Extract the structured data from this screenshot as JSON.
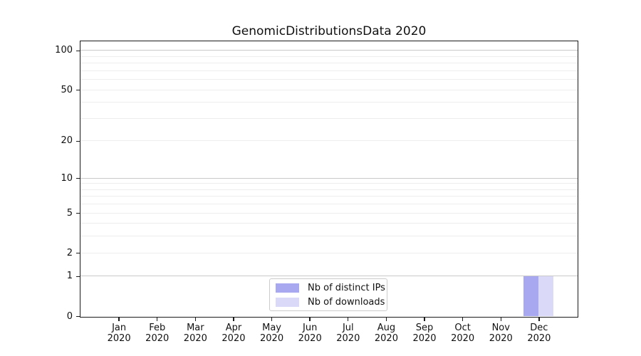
{
  "chart_data": {
    "type": "bar",
    "title": "GenomicDistributionsData 2020",
    "categories": [
      "Jan",
      "Feb",
      "Mar",
      "Apr",
      "May",
      "Jun",
      "Jul",
      "Aug",
      "Sep",
      "Oct",
      "Nov",
      "Dec"
    ],
    "category_year": "2020",
    "series": [
      {
        "name": "Nb of distinct IPs",
        "color": "#a8a8f0",
        "values": [
          0,
          0,
          0,
          0,
          0,
          0,
          0,
          0,
          0,
          0,
          0,
          1
        ]
      },
      {
        "name": "Nb of downloads",
        "color": "#dadaf8",
        "values": [
          0,
          0,
          0,
          0,
          0,
          0,
          0,
          0,
          0,
          0,
          0,
          1
        ]
      }
    ],
    "yscale": "log1p",
    "ylim": [
      0,
      117.5
    ],
    "ytick_labels": [
      "0",
      "1",
      "2",
      "5",
      "10",
      "20",
      "50",
      "100"
    ],
    "ytick_values": [
      0,
      1,
      2,
      5,
      10,
      20,
      50,
      100
    ],
    "major_gridlines": [
      1,
      10,
      100
    ],
    "minor_gridlines": [
      2,
      3,
      4,
      5,
      6,
      7,
      8,
      9,
      20,
      30,
      40,
      50,
      60,
      70,
      80,
      90
    ],
    "grid": true,
    "legend_position": "bottom-center",
    "xlabel": "",
    "ylabel": ""
  },
  "colors": {
    "major_gridline": "#c9c9c9",
    "minor_gridline": "#ededed",
    "spine": "#1a1a1a",
    "background": "#ffffff",
    "text": "#111111"
  }
}
